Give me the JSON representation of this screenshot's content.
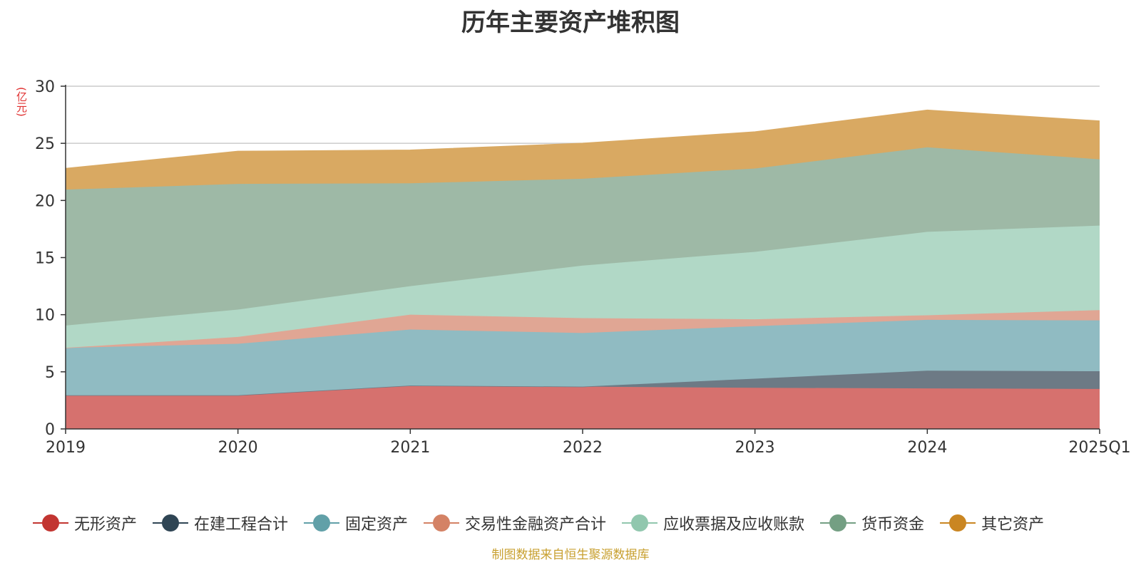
{
  "title": "历年主要资产堆积图",
  "unit_label": "(亿元)",
  "source": "制图数据来自恒生聚源数据库",
  "chart_data": {
    "type": "area",
    "stacked": true,
    "title": "历年主要资产堆积图",
    "ylabel": "(亿元)",
    "xlabel": "",
    "ylim": [
      0,
      30
    ],
    "yticks": [
      0,
      5,
      10,
      15,
      20,
      25,
      30
    ],
    "grid": true,
    "legend_position": "bottom",
    "categories": [
      "2019",
      "2020",
      "2021",
      "2022",
      "2023",
      "2024",
      "2025Q1"
    ],
    "series": [
      {
        "name": "无形资产",
        "color": "#c23531",
        "fill": "#d6716e",
        "values": [
          2.95,
          2.95,
          3.8,
          3.7,
          3.6,
          3.55,
          3.5
        ]
      },
      {
        "name": "在建工程合计",
        "color": "#2f4554",
        "fill": "#6d7a85",
        "values": [
          0.0,
          0.0,
          0.0,
          0.0,
          0.8,
          1.55,
          1.55
        ]
      },
      {
        "name": "固定资产",
        "color": "#61a0a8",
        "fill": "#90bbc2",
        "values": [
          4.15,
          4.5,
          4.9,
          4.7,
          4.6,
          4.45,
          4.45
        ]
      },
      {
        "name": "交易性金融资产合计",
        "color": "#d48265",
        "fill": "#e0a694",
        "values": [
          0.0,
          0.6,
          1.3,
          1.3,
          0.6,
          0.4,
          0.9
        ]
      },
      {
        "name": "应收票据及应收账款",
        "color": "#91c7ae",
        "fill": "#b1d8c6",
        "values": [
          1.95,
          2.4,
          2.5,
          4.6,
          5.9,
          7.3,
          7.4
        ]
      },
      {
        "name": "货币资金",
        "color": "#749f83",
        "fill": "#9eb9a6",
        "values": [
          11.9,
          11.0,
          9.0,
          7.6,
          7.3,
          7.4,
          5.8
        ]
      },
      {
        "name": "其它资产",
        "color": "#ca8622",
        "fill": "#d9a962",
        "values": [
          1.85,
          2.85,
          2.9,
          3.1,
          3.2,
          3.25,
          3.35
        ]
      }
    ]
  }
}
